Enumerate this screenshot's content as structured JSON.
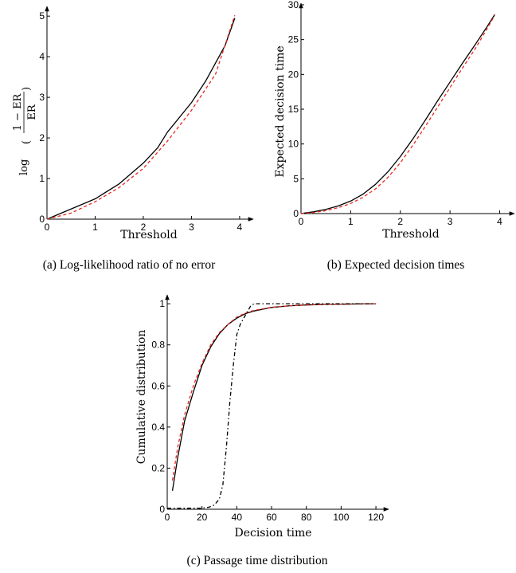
{
  "colors": {
    "axis": "#000000",
    "simulation": "#000000",
    "theory": "#e8281e",
    "comparison": "#000000"
  },
  "chart_data": [
    {
      "type": "line",
      "caption": "(a) Log-likelihood ratio of no error",
      "xlabel": "Threshold",
      "ylabel_parts": {
        "log": "log",
        "numerator": "1 − ER",
        "denominator": "ER"
      },
      "xlim": [
        0,
        4.2
      ],
      "ylim": [
        0,
        5.2
      ],
      "xticks": [
        0,
        1,
        2,
        3,
        4
      ],
      "yticks": [
        0,
        1,
        2,
        3,
        4,
        5
      ],
      "series": [
        {
          "style": "solid",
          "color": "#000000",
          "x": [
            0,
            0.5,
            1.0,
            1.5,
            2.0,
            2.3,
            2.5,
            3.0,
            3.3,
            3.7,
            3.9
          ],
          "y": [
            0,
            0.25,
            0.5,
            0.87,
            1.38,
            1.76,
            2.14,
            2.87,
            3.41,
            4.28,
            4.95
          ]
        },
        {
          "style": "dashed",
          "color": "#e8281e",
          "x": [
            0,
            0.5,
            1.0,
            1.5,
            2.0,
            2.5,
            3.0,
            3.5,
            3.9
          ],
          "y": [
            0,
            0.15,
            0.43,
            0.78,
            1.25,
            1.92,
            2.68,
            3.57,
            5.02
          ]
        }
      ]
    },
    {
      "type": "line",
      "caption": "(b) Expected decision times",
      "xlabel": "Threshold",
      "ylabel": "Expected decision time",
      "xlim": [
        0,
        4.2
      ],
      "ylim": [
        0,
        30
      ],
      "xticks": [
        0,
        1,
        2,
        3,
        4
      ],
      "yticks": [
        0,
        5,
        10,
        15,
        20,
        25,
        30
      ],
      "series": [
        {
          "style": "solid",
          "color": "#000000",
          "x": [
            0,
            0.25,
            0.5,
            0.75,
            1.0,
            1.25,
            1.5,
            1.75,
            2.0,
            2.25,
            2.5,
            2.75,
            3.0,
            3.25,
            3.5,
            3.75,
            3.9
          ],
          "y": [
            0,
            0.25,
            0.6,
            1.1,
            1.8,
            2.8,
            4.2,
            6.0,
            8.2,
            10.7,
            13.4,
            16.2,
            18.9,
            21.6,
            24.2,
            26.9,
            28.6
          ]
        },
        {
          "style": "dashed",
          "color": "#e8281e",
          "x": [
            0,
            0.25,
            0.5,
            0.75,
            1.0,
            1.25,
            1.5,
            1.75,
            2.0,
            2.25,
            2.5,
            2.75,
            3.0,
            3.25,
            3.5,
            3.75,
            3.9
          ],
          "y": [
            0,
            0.15,
            0.42,
            0.85,
            1.45,
            2.35,
            3.55,
            5.2,
            7.3,
            9.8,
            12.5,
            15.3,
            18.1,
            20.9,
            23.6,
            26.6,
            28.5
          ]
        }
      ]
    },
    {
      "type": "line",
      "caption": "(c) Passage time distribution",
      "xlabel": "Decision time",
      "ylabel": "Cumulative distribution",
      "xlim": [
        0,
        125
      ],
      "ylim": [
        0,
        1.02
      ],
      "xticks": [
        0,
        20,
        40,
        60,
        80,
        100,
        120
      ],
      "yticks": [
        0,
        0.2,
        0.4,
        0.6,
        0.8,
        1
      ],
      "series": [
        {
          "style": "solid",
          "color": "#000000",
          "x": [
            3,
            6,
            10,
            15,
            20,
            25,
            30,
            35,
            40,
            45,
            50,
            60,
            70,
            80,
            90,
            100,
            110,
            120
          ],
          "y": [
            0.09,
            0.25,
            0.43,
            0.57,
            0.7,
            0.79,
            0.855,
            0.9,
            0.93,
            0.952,
            0.965,
            0.982,
            0.99,
            0.994,
            0.997,
            0.998,
            0.999,
            1.0
          ]
        },
        {
          "style": "dashed",
          "color": "#e8281e",
          "x": [
            3,
            6,
            10,
            15,
            20,
            25,
            30,
            35,
            40,
            45,
            50,
            60,
            70,
            80,
            90,
            100,
            110,
            120
          ],
          "y": [
            0.14,
            0.3,
            0.46,
            0.6,
            0.71,
            0.8,
            0.86,
            0.9,
            0.935,
            0.955,
            0.968,
            0.983,
            0.99,
            0.994,
            0.997,
            0.998,
            0.999,
            1.0
          ]
        },
        {
          "style": "dashdot",
          "color": "#000000",
          "x": [
            0,
            10,
            20,
            24,
            27,
            30,
            32,
            34,
            36,
            38,
            40,
            42,
            44,
            46,
            48,
            50,
            60,
            80,
            100,
            120
          ],
          "y": [
            0.005,
            0.005,
            0.005,
            0.01,
            0.02,
            0.05,
            0.12,
            0.3,
            0.52,
            0.7,
            0.85,
            0.9,
            0.93,
            0.96,
            0.99,
            1.0,
            1.0,
            1.0,
            1.0,
            1.0
          ]
        }
      ]
    }
  ]
}
